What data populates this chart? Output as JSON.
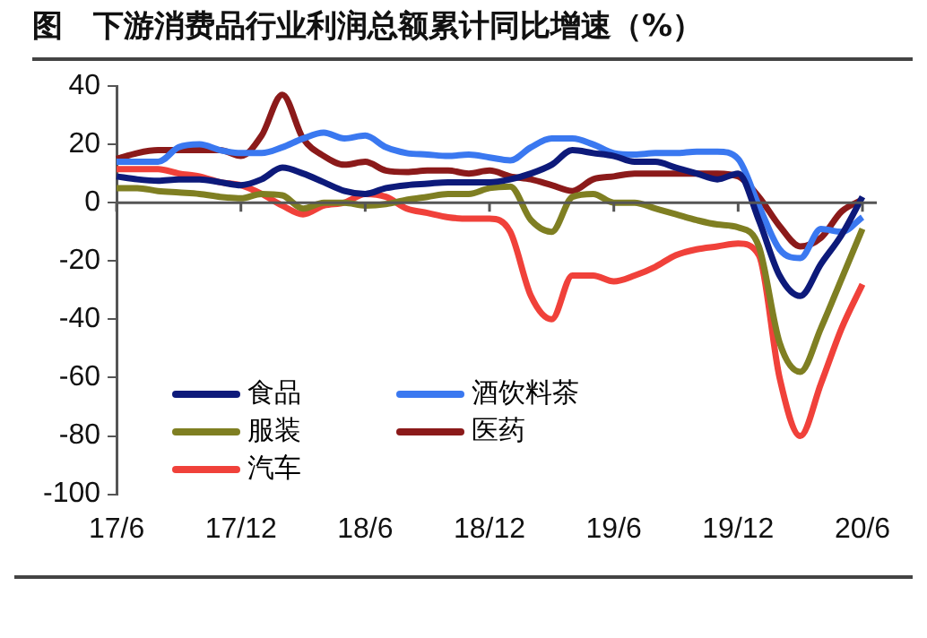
{
  "chart_data": {
    "type": "line",
    "title": "图　下游消费品行业利润总额累计同比增速（%）",
    "categories": [
      "17/6",
      null,
      null,
      null,
      null,
      null,
      "17/12",
      null,
      null,
      null,
      null,
      null,
      "18/6",
      null,
      null,
      null,
      null,
      null,
      "18/12",
      null,
      null,
      null,
      null,
      null,
      "19/6",
      null,
      null,
      null,
      null,
      null,
      "19/12",
      null,
      null,
      null,
      null,
      null,
      "20/6"
    ],
    "series": [
      {
        "name": "食品",
        "color": "#0d1a7a",
        "values": [
          9,
          8,
          7.5,
          8,
          8,
          7,
          6,
          8,
          12,
          10,
          7,
          4,
          3,
          5,
          6,
          6.5,
          7,
          7,
          7,
          8,
          10,
          13,
          18,
          17,
          16,
          14,
          14,
          12,
          10,
          8,
          10,
          -6,
          -25,
          -32,
          -21,
          -11,
          2
        ]
      },
      {
        "name": "酒饮料茶",
        "color": "#3a78f0",
        "values": [
          14,
          14,
          14,
          19,
          20,
          18,
          17,
          17,
          19,
          22,
          24,
          22,
          23,
          19,
          17,
          16.5,
          16,
          16.5,
          15.5,
          14.5,
          19,
          22,
          22,
          20,
          17,
          16.5,
          17,
          17,
          17.5,
          17.5,
          15,
          -1,
          -16,
          -19,
          -9,
          -10,
          -5
        ]
      },
      {
        "name": "服装",
        "color": "#7f7f22",
        "values": [
          5,
          5,
          4,
          3.5,
          3,
          2,
          1.5,
          3,
          2.5,
          -2,
          0,
          0,
          -1,
          -0.5,
          1,
          2,
          3,
          3,
          5,
          5.5,
          -6,
          -10,
          2,
          3,
          0,
          0,
          -2,
          -4,
          -6,
          -7.5,
          -8.5,
          -15,
          -48,
          -58,
          -43,
          -26,
          -9
        ]
      },
      {
        "name": "医药",
        "color": "#8b1a1a",
        "values": [
          15,
          17,
          18,
          18,
          18,
          18,
          16,
          23,
          37,
          22,
          16,
          13,
          14,
          11,
          10.5,
          11,
          11,
          10,
          11,
          9,
          8,
          6,
          4,
          8,
          9,
          10,
          10,
          10,
          10,
          10,
          9,
          2,
          -8,
          -15,
          -12,
          -3,
          1
        ]
      },
      {
        "name": "汽车",
        "color": "#f0413a",
        "values": [
          11.5,
          11.5,
          11.5,
          10,
          9,
          7,
          6,
          3,
          -1,
          -4,
          -1,
          0,
          3,
          2,
          -2,
          -3.5,
          -5,
          -5.5,
          -5.5,
          -10,
          -32,
          -40,
          -25,
          -25,
          -27,
          -25,
          -22,
          -18,
          -16,
          -15,
          -14,
          -18,
          -60,
          -80,
          -62,
          -43,
          -28
        ]
      }
    ],
    "ylim": [
      -100,
      40
    ],
    "yticks": [
      -100,
      -80,
      -60,
      -40,
      -20,
      0,
      20,
      40
    ],
    "legend": "bottom left"
  }
}
